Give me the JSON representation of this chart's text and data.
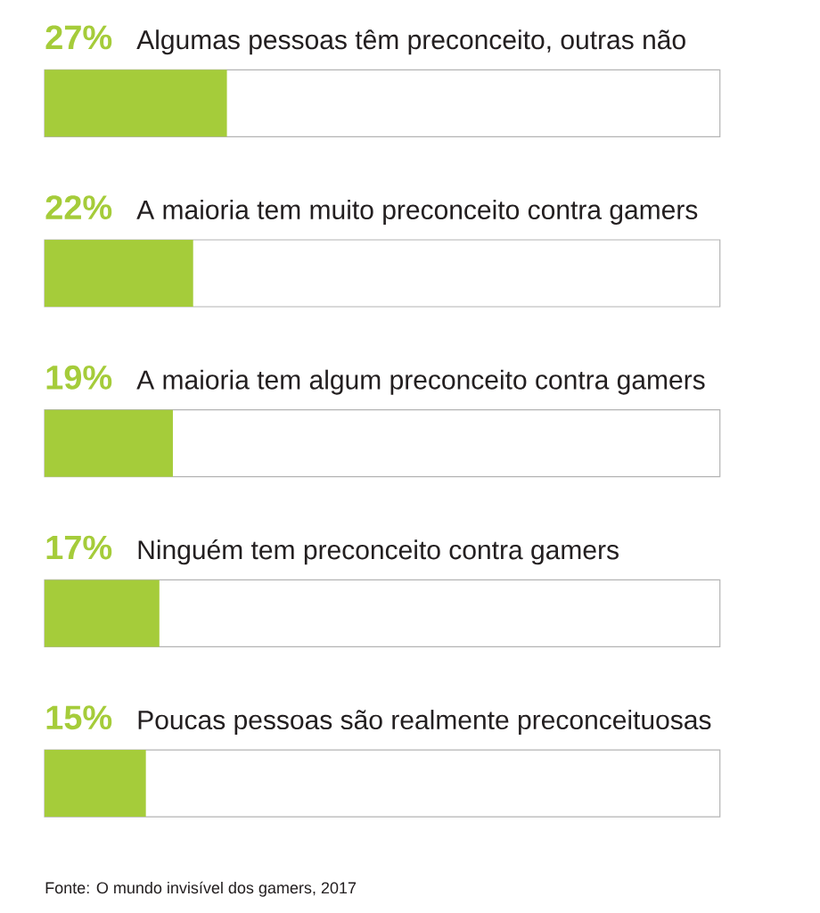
{
  "chart_data": {
    "type": "bar",
    "orientation": "horizontal",
    "categories": [
      "Algumas pessoas têm preconceito, outras não",
      "A maioria tem muito preconceito contra gamers",
      "A maioria tem algum preconceito contra gamers",
      "Ninguém tem preconceito contra gamers",
      "Poucas pessoas são realmente preconceituosas"
    ],
    "values": [
      27,
      22,
      19,
      17,
      15
    ],
    "value_labels": [
      "27%",
      "22%",
      "19%",
      "17%",
      "15%"
    ],
    "color": "#a5cc3a",
    "xlim": [
      0,
      100
    ],
    "annotations": [
      "Fonte: O mundo invisível dos gamers, 2017"
    ]
  }
}
